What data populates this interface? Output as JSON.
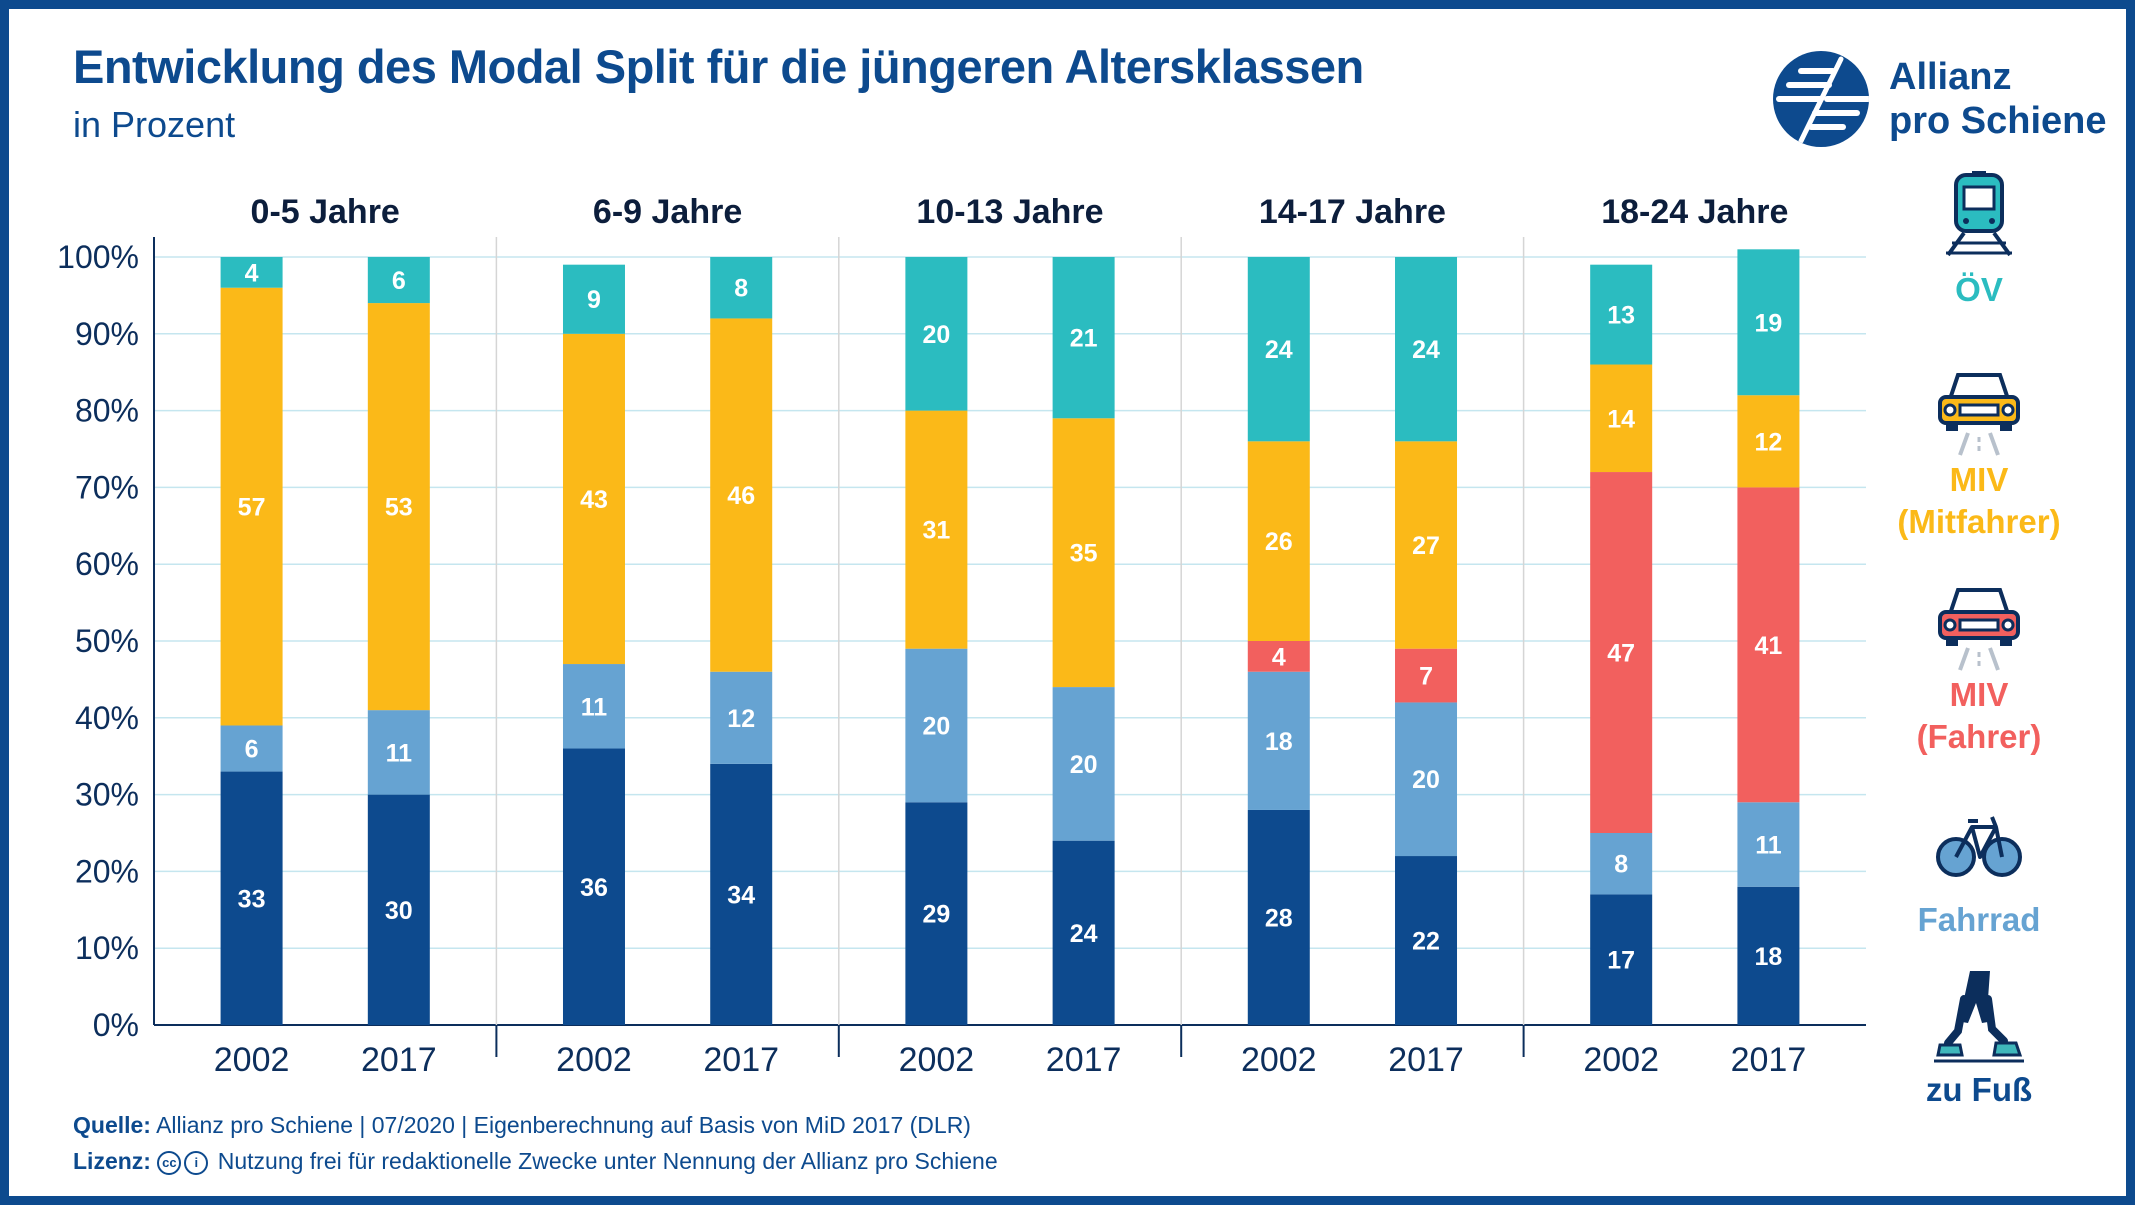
{
  "header": {
    "title": "Entwicklung des Modal Split für die jüngeren Altersklassen",
    "subtitle": "in Prozent"
  },
  "brand": {
    "line1": "Allianz",
    "line2": "pro Schiene"
  },
  "colors": {
    "ov": "#2bbcc0",
    "miv_mitfahrer": "#fbb918",
    "miv_fahrer": "#f2605e",
    "fahrrad": "#66a3d2",
    "zu_fuss": "#0d4a8e",
    "text_dark": "#0c2e5c"
  },
  "legend": [
    {
      "key": "ov",
      "icon": "train-icon",
      "lines": [
        "ÖV"
      ],
      "color": "#2bbcc0"
    },
    {
      "key": "miv_mitfahrer",
      "icon": "car-passenger-icon",
      "lines": [
        "MIV",
        "(Mitfahrer)"
      ],
      "color": "#fbb918"
    },
    {
      "key": "miv_fahrer",
      "icon": "car-driver-icon",
      "lines": [
        "MIV",
        "(Fahrer)"
      ],
      "color": "#f2605e"
    },
    {
      "key": "fahrrad",
      "icon": "bicycle-icon",
      "lines": [
        "Fahrrad"
      ],
      "color": "#66a3d2"
    },
    {
      "key": "zu_fuss",
      "icon": "walking-icon",
      "lines": [
        "zu Fuß"
      ],
      "color": "#0d4a8e"
    }
  ],
  "chart_data": {
    "type": "bar",
    "stacked": true,
    "y_ticks": [
      "0%",
      "10%",
      "20%",
      "30%",
      "40%",
      "50%",
      "60%",
      "70%",
      "80%",
      "90%",
      "100%"
    ],
    "ylim": [
      0,
      100
    ],
    "grid": true,
    "legend_position": "right",
    "groups": [
      {
        "label": "0-5 Jahre",
        "bars": [
          {
            "year": "2002",
            "segments": [
              {
                "series": "zu_fuss",
                "value": 33
              },
              {
                "series": "fahrrad",
                "value": 6
              },
              {
                "series": "miv_mitfahrer",
                "value": 57
              },
              {
                "series": "ov",
                "value": 4
              }
            ]
          },
          {
            "year": "2017",
            "segments": [
              {
                "series": "zu_fuss",
                "value": 30
              },
              {
                "series": "fahrrad",
                "value": 11
              },
              {
                "series": "miv_mitfahrer",
                "value": 53
              },
              {
                "series": "ov",
                "value": 6
              }
            ]
          }
        ]
      },
      {
        "label": "6-9 Jahre",
        "bars": [
          {
            "year": "2002",
            "segments": [
              {
                "series": "zu_fuss",
                "value": 36
              },
              {
                "series": "fahrrad",
                "value": 11
              },
              {
                "series": "miv_mitfahrer",
                "value": 43
              },
              {
                "series": "ov",
                "value": 9
              }
            ]
          },
          {
            "year": "2017",
            "segments": [
              {
                "series": "zu_fuss",
                "value": 34
              },
              {
                "series": "fahrrad",
                "value": 12
              },
              {
                "series": "miv_mitfahrer",
                "value": 46
              },
              {
                "series": "ov",
                "value": 8
              }
            ]
          }
        ]
      },
      {
        "label": "10-13 Jahre",
        "bars": [
          {
            "year": "2002",
            "segments": [
              {
                "series": "zu_fuss",
                "value": 29
              },
              {
                "series": "fahrrad",
                "value": 20
              },
              {
                "series": "miv_mitfahrer",
                "value": 31
              },
              {
                "series": "ov",
                "value": 20
              }
            ]
          },
          {
            "year": "2017",
            "segments": [
              {
                "series": "zu_fuss",
                "value": 24
              },
              {
                "series": "fahrrad",
                "value": 20
              },
              {
                "series": "miv_mitfahrer",
                "value": 35
              },
              {
                "series": "ov",
                "value": 21
              }
            ]
          }
        ]
      },
      {
        "label": "14-17 Jahre",
        "bars": [
          {
            "year": "2002",
            "segments": [
              {
                "series": "zu_fuss",
                "value": 28
              },
              {
                "series": "fahrrad",
                "value": 18
              },
              {
                "series": "miv_fahrer",
                "value": 4
              },
              {
                "series": "miv_mitfahrer",
                "value": 26
              },
              {
                "series": "ov",
                "value": 24
              }
            ]
          },
          {
            "year": "2017",
            "segments": [
              {
                "series": "zu_fuss",
                "value": 22
              },
              {
                "series": "fahrrad",
                "value": 20
              },
              {
                "series": "miv_fahrer",
                "value": 7
              },
              {
                "series": "miv_mitfahrer",
                "value": 27
              },
              {
                "series": "ov",
                "value": 24
              }
            ]
          }
        ]
      },
      {
        "label": "18-24 Jahre",
        "bars": [
          {
            "year": "2002",
            "segments": [
              {
                "series": "zu_fuss",
                "value": 17
              },
              {
                "series": "fahrrad",
                "value": 8
              },
              {
                "series": "miv_fahrer",
                "value": 47
              },
              {
                "series": "miv_mitfahrer",
                "value": 14
              },
              {
                "series": "ov",
                "value": 13
              }
            ]
          },
          {
            "year": "2017",
            "segments": [
              {
                "series": "zu_fuss",
                "value": 18
              },
              {
                "series": "fahrrad",
                "value": 11
              },
              {
                "series": "miv_fahrer",
                "value": 41
              },
              {
                "series": "miv_mitfahrer",
                "value": 12
              },
              {
                "series": "ov",
                "value": 19
              }
            ]
          }
        ]
      }
    ]
  },
  "footer": {
    "source_label": "Quelle:",
    "source_text": "Allianz pro Schiene | 07/2020 | Eigenberechnung auf Basis von MiD 2017 (DLR)",
    "license_label": "Lizenz:",
    "license_text": "Nutzung frei für redaktionelle Zwecke unter Nennung der Allianz pro Schiene"
  }
}
